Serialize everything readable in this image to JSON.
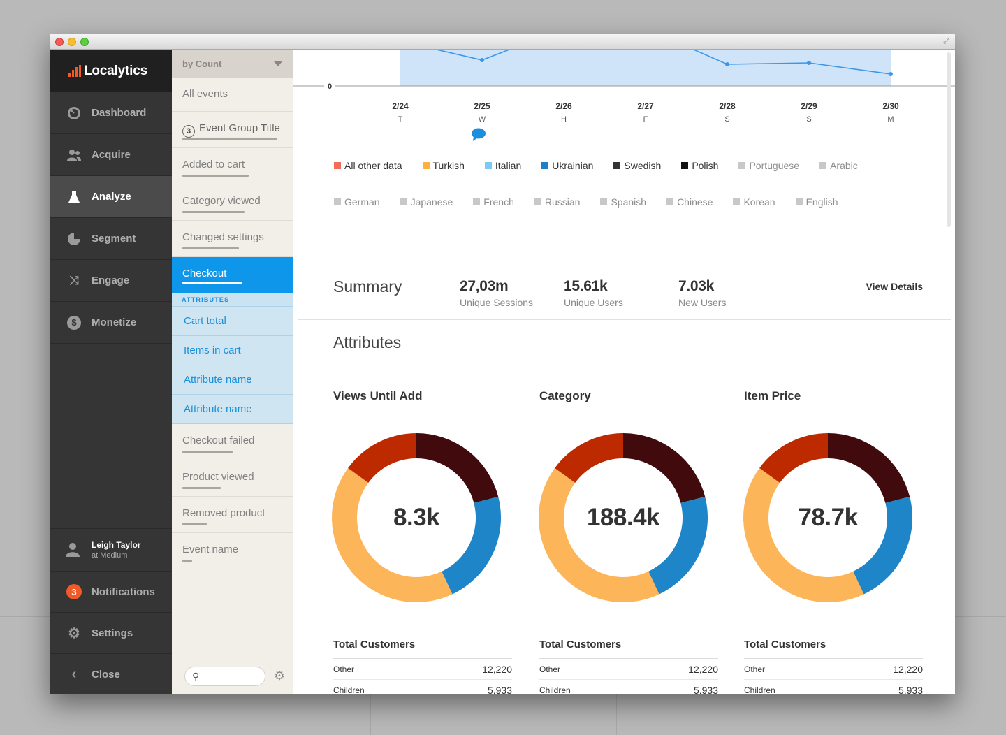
{
  "app": {
    "name": "Localytics"
  },
  "nav": {
    "items": [
      {
        "label": "Dashboard",
        "icon": "speedometer-icon"
      },
      {
        "label": "Acquire",
        "icon": "users-icon"
      },
      {
        "label": "Analyze",
        "icon": "flask-icon",
        "active": true
      },
      {
        "label": "Segment",
        "icon": "pie-icon"
      },
      {
        "label": "Engage",
        "icon": "shuffle-icon"
      },
      {
        "label": "Monetize",
        "icon": "dollar-icon"
      }
    ],
    "user": {
      "name": "Leigh Taylor",
      "org": "at Medium"
    },
    "notifications": {
      "label": "Notifications",
      "count": "3"
    },
    "settings": {
      "label": "Settings"
    },
    "close": {
      "label": "Close"
    }
  },
  "events": {
    "sort_label": "by Count",
    "all_events": "All events",
    "group": {
      "count": "3",
      "label": "Event Group Title"
    },
    "items": [
      {
        "label": "Added to cart",
        "bar": 0.66
      },
      {
        "label": "Category viewed",
        "bar": 0.62
      },
      {
        "label": "Changed settings",
        "bar": 0.56
      }
    ],
    "selected": {
      "label": "Checkout",
      "bar": 0.6
    },
    "attributes_heading": "ATTRIBUTES",
    "attributes": [
      "Cart total",
      "Items in cart",
      "Attribute name",
      "Attribute name"
    ],
    "items_after": [
      {
        "label": "Checkout failed",
        "bar": 0.5
      },
      {
        "label": "Product viewed",
        "bar": 0.38
      },
      {
        "label": "Removed product",
        "bar": 0.24
      },
      {
        "label": "Event name",
        "bar": 0.1
      }
    ],
    "search_placeholder": ""
  },
  "chart_data": {
    "type": "area",
    "x": [
      "2/24",
      "2/25",
      "2/26",
      "2/27",
      "2/28",
      "2/29",
      "2/30"
    ],
    "day_letters": [
      "T",
      "W",
      "H",
      "F",
      "S",
      "S",
      "M"
    ],
    "y_tick_zero": "0",
    "legend": [
      {
        "name": "All other data",
        "color": "#f26b5b"
      },
      {
        "name": "Turkish",
        "color": "#fbb040"
      },
      {
        "name": "Italian",
        "color": "#7cc9f5"
      },
      {
        "name": "Ukrainian",
        "color": "#1e81c7"
      },
      {
        "name": "Swedish",
        "color": "#333333"
      },
      {
        "name": "Polish",
        "color": "#111111"
      },
      {
        "name": "Portuguese",
        "color": "#c8c8c8",
        "muted": true
      },
      {
        "name": "Arabic",
        "color": "#c8c8c8",
        "muted": true
      },
      {
        "name": "German",
        "color": "#c8c8c8",
        "muted": true
      },
      {
        "name": "Japanese",
        "color": "#c8c8c8",
        "muted": true
      },
      {
        "name": "French",
        "color": "#c8c8c8",
        "muted": true
      },
      {
        "name": "Russian",
        "color": "#c8c8c8",
        "muted": true
      },
      {
        "name": "Spanish",
        "color": "#c8c8c8",
        "muted": true
      },
      {
        "name": "Chinese",
        "color": "#c8c8c8",
        "muted": true
      },
      {
        "name": "Korean",
        "color": "#c8c8c8",
        "muted": true
      },
      {
        "name": "English",
        "color": "#c8c8c8",
        "muted": true
      }
    ],
    "annotation_marker_on": "2/25"
  },
  "summary": {
    "title": "Summary",
    "stats": [
      {
        "value": "27,03m",
        "label": "Unique Sessions"
      },
      {
        "value": "15.61k",
        "label": "Unique Users"
      },
      {
        "value": "7.03k",
        "label": "New Users"
      }
    ],
    "view_details": "View Details"
  },
  "attributes": {
    "title": "Attributes",
    "colors": [
      "#410a0d",
      "#1e86c8",
      "#fdb55a",
      "#be2a00"
    ],
    "columns": [
      {
        "title": "Views Until Add",
        "center": "8.3k",
        "slices": [
          0.21,
          0.22,
          0.42,
          0.15
        ],
        "table_title": "Total Customers",
        "rows": [
          {
            "label": "Other",
            "value": "12,220"
          },
          {
            "label": "Children",
            "value": "5,933"
          }
        ]
      },
      {
        "title": "Category",
        "center": "188.4k",
        "slices": [
          0.21,
          0.22,
          0.42,
          0.15
        ],
        "table_title": "Total Customers",
        "rows": [
          {
            "label": "Other",
            "value": "12,220"
          },
          {
            "label": "Children",
            "value": "5,933"
          }
        ]
      },
      {
        "title": "Item Price",
        "center": "78.7k",
        "slices": [
          0.21,
          0.22,
          0.42,
          0.15
        ],
        "table_title": "Total Customers",
        "rows": [
          {
            "label": "Other",
            "value": "12,220"
          },
          {
            "label": "Children",
            "value": "5,933"
          }
        ]
      }
    ]
  }
}
